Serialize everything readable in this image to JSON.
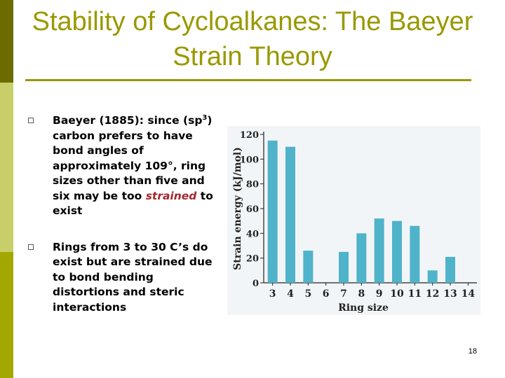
{
  "slide": {
    "title": "Stability of Cycloalkanes: The Baeyer Strain Theory",
    "page_number": "18"
  },
  "bullets": {
    "b1_pre": "Baeyer (1885): since (sp",
    "b1_sup": "3",
    "b1_mid": ") carbon prefers to have bond angles of approximately 109°, ring sizes other than five and six may be too ",
    "b1_accent": "strained",
    "b1_post": " to exist",
    "b2": "Rings from 3 to 30 C’s do exist but are strained due to bond bending distortions and steric interactions"
  },
  "colors": {
    "sidebar_dark": "#6b6b00",
    "sidebar_light": "#c8cf6a",
    "sidebar_mid": "#a3a800",
    "title": "#999900",
    "bar": "#4fb3c9",
    "accent": "#a0282b"
  },
  "chart_data": {
    "type": "bar",
    "categories": [
      "3",
      "4",
      "5",
      "6",
      "7",
      "8",
      "9",
      "10",
      "11",
      "12",
      "13",
      "14"
    ],
    "values": [
      115,
      110,
      26,
      0,
      25,
      40,
      52,
      50,
      46,
      10,
      21,
      0
    ],
    "xlabel": "Ring size",
    "ylabel": "Strain energy (kJ/mol)",
    "ylim": [
      0,
      120
    ],
    "yticks": [
      0,
      20,
      40,
      60,
      80,
      100,
      120
    ],
    "grid": false
  }
}
